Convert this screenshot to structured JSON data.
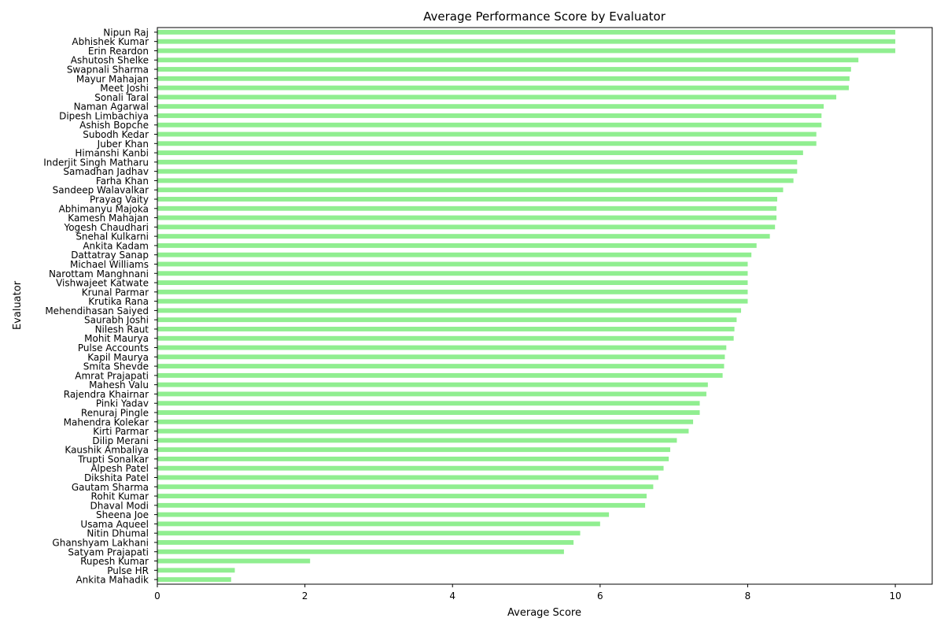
{
  "chart_data": {
    "type": "bar",
    "orientation": "horizontal",
    "title": "Average Performance Score by Evaluator",
    "xlabel": "Average Score",
    "ylabel": "Evaluator",
    "xlim": [
      0,
      10.5
    ],
    "xticks": [
      0,
      2,
      4,
      6,
      8,
      10
    ],
    "grid": false,
    "bar_color": "#90ee90",
    "categories": [
      "Nipun Raj",
      "Abhishek Kumar",
      "Erin Reardon",
      "Ashutosh Shelke",
      "Swapnali Sharma",
      "Mayur Mahajan",
      "Meet Joshi",
      "Sonali Taral",
      "Naman Agarwal",
      "Dipesh Limbachiya",
      "Ashish Bopche",
      "Subodh Kedar",
      "Juber Khan",
      "Himanshi Kanbi",
      "Inderjit Singh Matharu",
      "Samadhan Jadhav",
      "Farha Khan",
      "Sandeep Walavalkar",
      "Prayag Vaity",
      "Abhimanyu Majoka",
      "Kamesh Mahajan",
      "Yogesh Chaudhari",
      "Snehal Kulkarni",
      "Ankita Kadam",
      "Dattatray Sanap",
      "Michael Williams",
      "Narottam Manghnani",
      "Vishwajeet Katwate",
      "Krunal Parmar",
      "Krutika Rana",
      "Mehendihasan Saiyed",
      "Saurabh Joshi",
      "Nilesh Raut",
      "Mohit Maurya",
      "Pulse Accounts",
      "Kapil Maurya",
      "Smita Shevde",
      "Amrat Prajapati",
      "Mahesh Valu",
      "Rajendra Khairnar",
      "Pinki Yadav",
      "Renuraj Pingle",
      "Mahendra Kolekar",
      "Kirti Parmar",
      "Dilip Merani",
      "Kaushik Ambaliya",
      "Trupti Sonalkar",
      "Alpesh Patel",
      "Dikshita Patel",
      "Gautam Sharma",
      "Rohit Kumar",
      "Dhaval Modi",
      "Sheena Joe",
      "Usama Aqueel",
      "Nitin Dhumal",
      "Ghanshyam Lakhani",
      "Satyam Prajapati",
      "Rupesh Kumar",
      "Pulse HR",
      "Ankita Mahadik"
    ],
    "values": [
      10.0,
      10.0,
      10.0,
      9.5,
      9.4,
      9.38,
      9.37,
      9.2,
      9.03,
      9.0,
      9.0,
      8.93,
      8.93,
      8.75,
      8.67,
      8.67,
      8.62,
      8.48,
      8.4,
      8.39,
      8.39,
      8.37,
      8.3,
      8.12,
      8.05,
      8.0,
      8.0,
      8.0,
      8.0,
      8.0,
      7.91,
      7.85,
      7.82,
      7.81,
      7.71,
      7.69,
      7.68,
      7.66,
      7.46,
      7.44,
      7.35,
      7.35,
      7.26,
      7.2,
      7.04,
      6.95,
      6.93,
      6.86,
      6.79,
      6.72,
      6.63,
      6.61,
      6.12,
      6.0,
      5.73,
      5.64,
      5.51,
      2.07,
      1.05,
      1.0
    ]
  }
}
